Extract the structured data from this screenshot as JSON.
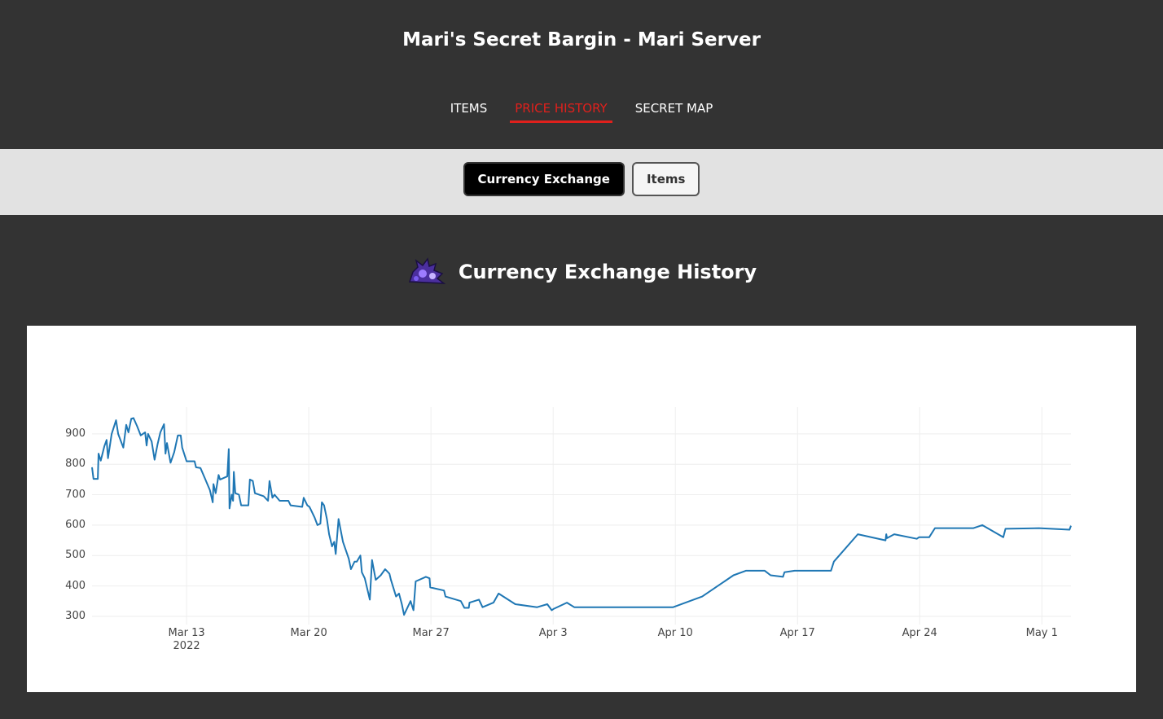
{
  "header": {
    "title": "Mari's Secret Bargin - Mari Server",
    "nav": [
      "ITEMS",
      "PRICE HISTORY",
      "SECRET MAP"
    ]
  },
  "tabs": [
    "Currency Exchange",
    "Items"
  ],
  "section": {
    "title": "Currency Exchange History"
  },
  "chart_data": {
    "type": "line",
    "color": "#1f77b4",
    "grid": true,
    "x": [
      "2022-03-07 14:00",
      "2022-03-07 16:00",
      "2022-03-07 22:00",
      "2022-03-07 23:00",
      "2022-03-08 02:00",
      "2022-03-08 07:00",
      "2022-03-08 10:00",
      "2022-03-08 12:00",
      "2022-03-08 17:00",
      "2022-03-08 23:00",
      "2022-03-09 02:00",
      "2022-03-09 09:00",
      "2022-03-09 13:00",
      "2022-03-09 16:00",
      "2022-03-09 20:00",
      "2022-03-09 23:00",
      "2022-03-10 04:00",
      "2022-03-10 09:00",
      "2022-03-10 15:00",
      "2022-03-10 17:00",
      "2022-03-10 19:00",
      "2022-03-11 00:00",
      "2022-03-11 04:00",
      "2022-03-11 08:00",
      "2022-03-11 12:00",
      "2022-03-11 17:00",
      "2022-03-11 19:00",
      "2022-03-11 21:00",
      "2022-03-12 02:00",
      "2022-03-12 07:00",
      "2022-03-12 12:00",
      "2022-03-12 16:00",
      "2022-03-12 18:00",
      "2022-03-13 00:00",
      "2022-03-13 11:00",
      "2022-03-13 13:00",
      "2022-03-13 19:00",
      "2022-03-14 01:00",
      "2022-03-14 08:00",
      "2022-03-14 12:00",
      "2022-03-14 13:00",
      "2022-03-14 16:00",
      "2022-03-14 20:00",
      "2022-03-14 22:00",
      "2022-03-15 08:00",
      "2022-03-15 10:00",
      "2022-03-15 11:00",
      "2022-03-15 14:00",
      "2022-03-15 16:00",
      "2022-03-15 17:00",
      "2022-03-15 19:00",
      "2022-03-16 00:00",
      "2022-03-16 03:00",
      "2022-03-16 13:00",
      "2022-03-16 15:00",
      "2022-03-16 19:00",
      "2022-03-16 22:00",
      "2022-03-17 10:00",
      "2022-03-17 16:00",
      "2022-03-17 18:00",
      "2022-03-17 22:00",
      "2022-03-18 01:00",
      "2022-03-18 08:00",
      "2022-03-18 20:00",
      "2022-03-18 23:00",
      "2022-03-19 15:00",
      "2022-03-19 17:00",
      "2022-03-19 22:00",
      "2022-03-20 01:00",
      "2022-03-20 08:00",
      "2022-03-20 12:00",
      "2022-03-20 16:00",
      "2022-03-20 18:00",
      "2022-03-20 21:00",
      "2022-03-21 01:00",
      "2022-03-21 04:00",
      "2022-03-21 08:00",
      "2022-03-21 11:00",
      "2022-03-21 13:00",
      "2022-03-21 17:00",
      "2022-03-21 23:00",
      "2022-03-22 07:00",
      "2022-03-22 10:00",
      "2022-03-22 15:00",
      "2022-03-22 18:00",
      "2022-03-22 23:00",
      "2022-03-23 01:00",
      "2022-03-23 05:00",
      "2022-03-23 12:00",
      "2022-03-23 15:00",
      "2022-03-23 20:00",
      "2022-03-24 03:00",
      "2022-03-24 09:00",
      "2022-03-24 15:00",
      "2022-03-24 17:00",
      "2022-03-25 00:00",
      "2022-03-25 04:00",
      "2022-03-25 08:00",
      "2022-03-25 11:00",
      "2022-03-25 20:00",
      "2022-03-26 00:00",
      "2022-03-26 03:00",
      "2022-03-26 17:00",
      "2022-03-26 22:00",
      "2022-03-26 23:00",
      "2022-03-27 18:00",
      "2022-03-27 20:00",
      "2022-03-28 17:00",
      "2022-03-28 22:00",
      "2022-03-29 04:00",
      "2022-03-29 05:00",
      "2022-03-29 18:00",
      "2022-03-29 23:00",
      "2022-03-30 14:00",
      "2022-03-30 21:00",
      "2022-03-31 20:00",
      "2022-04-02 02:00",
      "2022-04-02 16:00",
      "2022-04-02 22:00",
      "2022-04-03 01:00",
      "2022-04-03 19:00",
      "2022-04-04 05:00",
      "2022-04-09 21:00",
      "2022-04-11 13:00",
      "2022-04-13 08:00",
      "2022-04-14 01:00",
      "2022-04-15 03:00",
      "2022-04-15 11:00",
      "2022-04-16 04:00",
      "2022-04-16 06:00",
      "2022-04-16 20:00",
      "2022-04-18 22:00",
      "2022-04-19 02:00",
      "2022-04-20 11:00",
      "2022-04-22 01:00",
      "2022-04-22 02:00",
      "2022-04-22 03:00",
      "2022-04-22 13:00",
      "2022-04-23 20:00",
      "2022-04-23 23:00",
      "2022-04-24 13:00",
      "2022-04-24 21:00",
      "2022-04-27 02:00",
      "2022-04-27 14:00",
      "2022-04-28 19:00",
      "2022-04-28 22:00",
      "2022-04-30 20:00",
      "2022-05-02 14:00",
      "2022-05-02 16:00"
    ],
    "values": [
      790,
      752,
      752,
      835,
      812,
      860,
      880,
      820,
      900,
      945,
      900,
      855,
      930,
      905,
      950,
      952,
      925,
      895,
      905,
      862,
      900,
      875,
      815,
      865,
      905,
      932,
      835,
      870,
      805,
      840,
      895,
      895,
      855,
      810,
      810,
      790,
      788,
      755,
      715,
      675,
      735,
      705,
      765,
      750,
      760,
      850,
      655,
      700,
      680,
      775,
      705,
      700,
      665,
      665,
      750,
      745,
      705,
      695,
      680,
      745,
      690,
      700,
      680,
      680,
      665,
      660,
      690,
      665,
      660,
      625,
      600,
      605,
      675,
      665,
      620,
      570,
      530,
      545,
      505,
      620,
      545,
      490,
      455,
      480,
      480,
      500,
      445,
      425,
      355,
      485,
      420,
      435,
      455,
      440,
      420,
      365,
      375,
      340,
      305,
      350,
      320,
      415,
      430,
      425,
      395,
      385,
      365,
      350,
      328,
      328,
      345,
      355,
      330,
      345,
      375,
      340,
      330,
      340,
      320,
      325,
      345,
      330,
      330,
      365,
      435,
      450,
      450,
      435,
      430,
      445,
      450,
      450,
      480,
      570,
      550,
      570,
      557,
      570,
      555,
      560,
      560,
      590,
      590,
      600,
      560,
      588,
      590,
      585,
      598
    ],
    "xlim": [
      "2022-03-07 14:00",
      "2022-05-02 16:00"
    ],
    "xticks": [
      {
        "value": "2022-03-13 00:00",
        "label": "Mar 13\n2022"
      },
      {
        "value": "2022-03-20 00:00",
        "label": "Mar 20"
      },
      {
        "value": "2022-03-27 00:00",
        "label": "Mar 27"
      },
      {
        "value": "2022-04-03 00:00",
        "label": "Apr 3"
      },
      {
        "value": "2022-04-10 00:00",
        "label": "Apr 10"
      },
      {
        "value": "2022-04-17 00:00",
        "label": "Apr 17"
      },
      {
        "value": "2022-04-24 00:00",
        "label": "Apr 24"
      },
      {
        "value": "2022-05-01 00:00",
        "label": "May 1"
      }
    ],
    "ylim": [
      273,
      988
    ],
    "yticks": [
      300,
      400,
      500,
      600,
      700,
      800,
      900
    ]
  }
}
